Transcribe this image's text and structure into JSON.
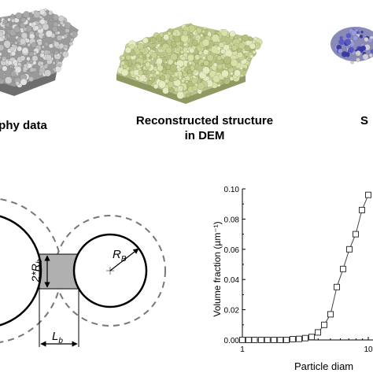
{
  "top_panels": {
    "left_caption": "phy data",
    "middle_caption_line1": "Reconstructed structure",
    "middle_caption_line2": "in DEM",
    "right_caption": "S"
  },
  "schematic": {
    "height_label": "2*R",
    "height_sub": "b",
    "radius_label": "R",
    "radius_sub": "B",
    "length_label": "L",
    "length_sub": "b"
  },
  "chart_data": {
    "type": "line",
    "ylabel": "Volume fraction (µm⁻¹)",
    "xlabel": "Particle diam",
    "x_scale": "log",
    "xlim": [
      1,
      10
    ],
    "ylim": [
      0,
      0.1
    ],
    "y_ticks": [
      "0.00",
      "0.02",
      "0.04",
      "0.06",
      "0.08",
      "0.10"
    ],
    "x_ticks": [
      "1",
      "10"
    ],
    "marker": "open-square",
    "series": [
      {
        "x": [
          1.0,
          1.12,
          1.25,
          1.41,
          1.58,
          1.78,
          2.0,
          2.24,
          2.51,
          2.82,
          3.16,
          3.55,
          3.98,
          4.47,
          5.01,
          5.62,
          6.31,
          7.08,
          7.94,
          8.91,
          10.0
        ],
        "y": [
          0.0,
          0.0,
          0.0,
          0.0,
          0.0,
          0.0,
          0.0,
          0.0,
          0.0005,
          0.0007,
          0.0012,
          0.002,
          0.005,
          0.01,
          0.017,
          0.035,
          0.047,
          0.06,
          0.07,
          0.086,
          0.096
        ]
      }
    ]
  }
}
